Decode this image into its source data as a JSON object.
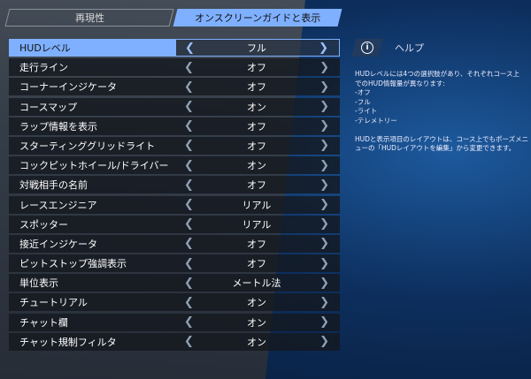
{
  "tabs": [
    {
      "label": "再現性",
      "active": false
    },
    {
      "label": "オンスクリーンガイドと表示",
      "active": true
    }
  ],
  "settings": [
    {
      "label": "HUDレベル",
      "value": "フル"
    },
    {
      "label": "走行ライン",
      "value": "オフ"
    },
    {
      "label": "コーナーインジケータ",
      "value": "オフ"
    },
    {
      "label": "コースマップ",
      "value": "オン"
    },
    {
      "label": "ラップ情報を表示",
      "value": "オフ"
    },
    {
      "label": "スターティンググリッドライト",
      "value": "オフ"
    },
    {
      "label": "コックピットホイール/ドライバー",
      "value": "オン"
    },
    {
      "label": "対戦相手の名前",
      "value": "オフ"
    },
    {
      "label": "レースエンジニア",
      "value": "リアル"
    },
    {
      "label": "スポッター",
      "value": "リアル"
    },
    {
      "label": "接近インジケータ",
      "value": "オフ"
    },
    {
      "label": "ピットストップ強調表示",
      "value": "オフ"
    },
    {
      "label": "単位表示",
      "value": "メートル法"
    },
    {
      "label": "チュートリアル",
      "value": "オン"
    },
    {
      "label": "チャット欄",
      "value": "オン"
    },
    {
      "label": "チャット規制フィルタ",
      "value": "オン"
    }
  ],
  "arrows": {
    "left": "❮",
    "right": "❯"
  },
  "help": {
    "icon": "info-icon",
    "icon_glyph": "i",
    "title": "ヘルプ",
    "lines": [
      "HUDレベルには4つの選択肢があり、それぞれコース上",
      "でのHUD情報量が異なります:",
      "-オフ",
      "-フル",
      "-ライト",
      "-テレメトリー",
      "",
      "HUDと表示項目のレイアウトは、コース上でもポーズメニ",
      "ューの「HUDレイアウトを編集」から変更できます。"
    ]
  },
  "colors": {
    "accent": "#7fb0ff"
  }
}
